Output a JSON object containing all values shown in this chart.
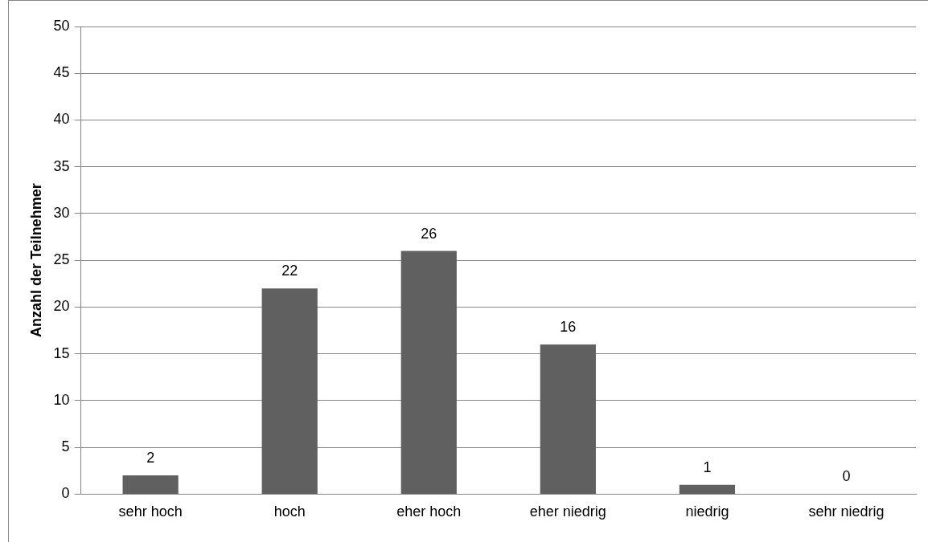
{
  "chart_data": {
    "type": "bar",
    "ylabel": "Anzahl der Teilnehmer",
    "categories": [
      "sehr hoch",
      "hoch",
      "eher hoch",
      "eher niedrig",
      "niedrig",
      "sehr niedrig"
    ],
    "values": [
      2,
      22,
      26,
      16,
      1,
      0
    ],
    "color": "#606060",
    "ylim": [
      0,
      50
    ],
    "yticks": [
      0,
      5,
      10,
      15,
      20,
      25,
      30,
      35,
      40,
      45,
      50
    ],
    "grid": "y",
    "data_labels": true,
    "legend": false
  }
}
